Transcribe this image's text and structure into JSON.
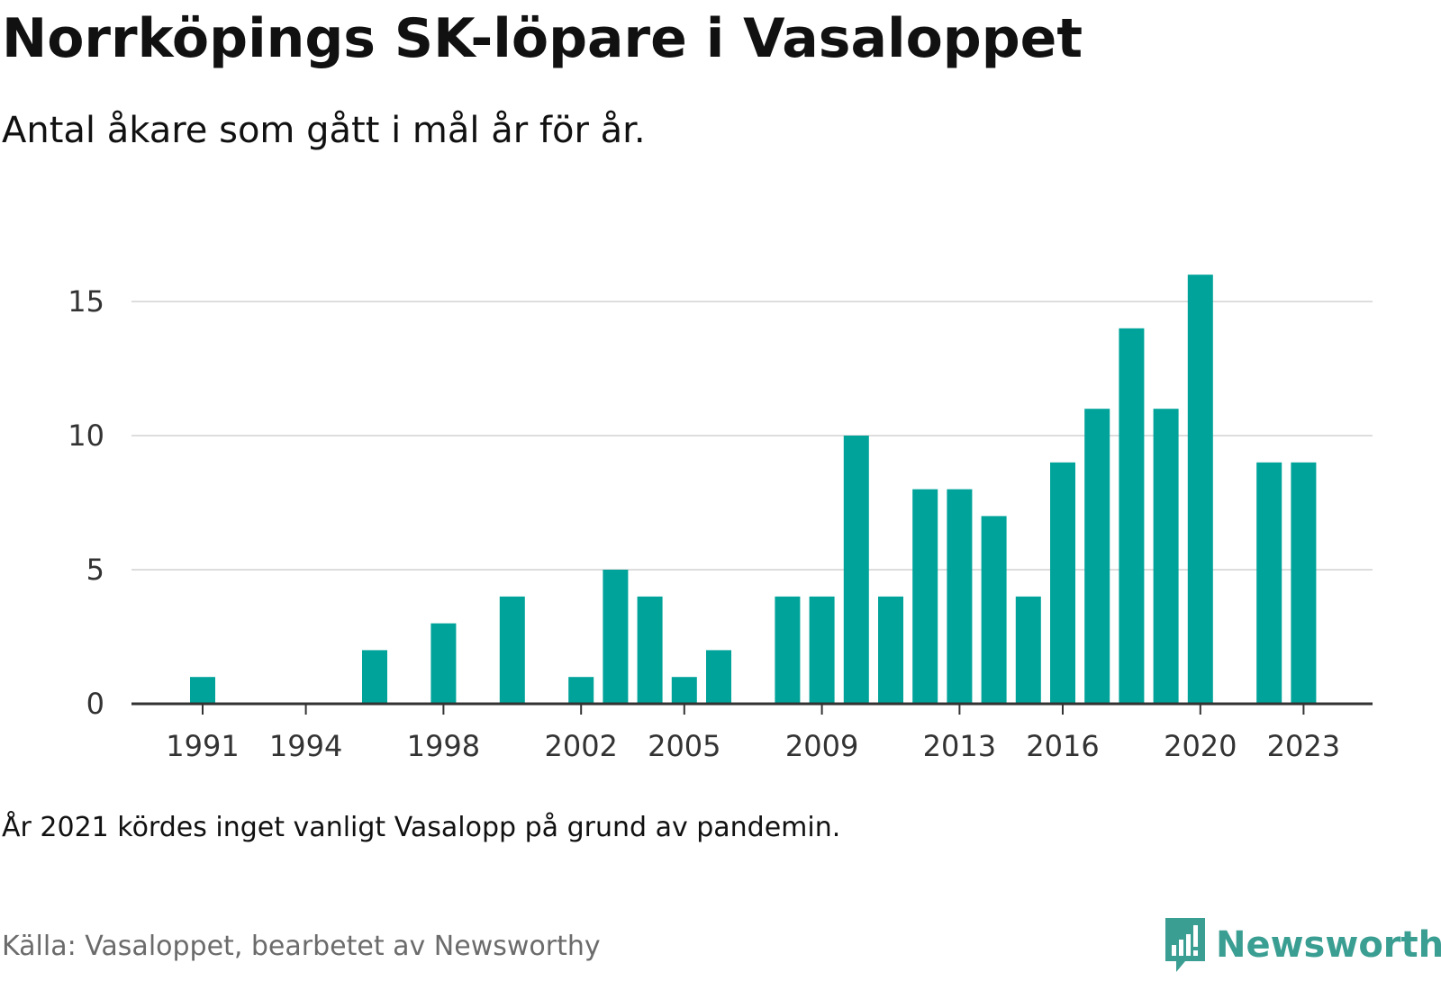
{
  "title": "Norrköpings SK-löpare i Vasaloppet",
  "subtitle": "Antal åkare som gått i mål år för år.",
  "note": "År 2021 kördes inget vanligt Vasalopp på grund av pandemin.",
  "source": "Källa: Vasaloppet, bearbetet av Newsworthy",
  "brand": {
    "name": "Newsworthy",
    "color": "#3a9e92"
  },
  "chart_data": {
    "type": "bar",
    "bar_color": "#00a39a",
    "x": [
      1991,
      1992,
      1993,
      1994,
      1995,
      1996,
      1997,
      1998,
      1999,
      2000,
      2001,
      2002,
      2003,
      2004,
      2005,
      2006,
      2007,
      2008,
      2009,
      2010,
      2011,
      2012,
      2013,
      2014,
      2015,
      2016,
      2017,
      2018,
      2019,
      2020,
      2021,
      2022,
      2023
    ],
    "values": [
      1,
      0,
      0,
      0,
      0,
      2,
      0,
      3,
      0,
      4,
      0,
      1,
      5,
      4,
      1,
      2,
      0,
      4,
      4,
      10,
      4,
      8,
      8,
      7,
      4,
      9,
      11,
      14,
      11,
      16,
      null,
      9,
      9
    ],
    "x_tick_labels": [
      "1991",
      "1994",
      "1998",
      "2002",
      "2005",
      "2009",
      "2013",
      "2016",
      "2020",
      "2023"
    ],
    "y_ticks": [
      0,
      5,
      10,
      15
    ],
    "ylim": [
      0,
      16
    ],
    "grid": true,
    "legend": "none"
  }
}
